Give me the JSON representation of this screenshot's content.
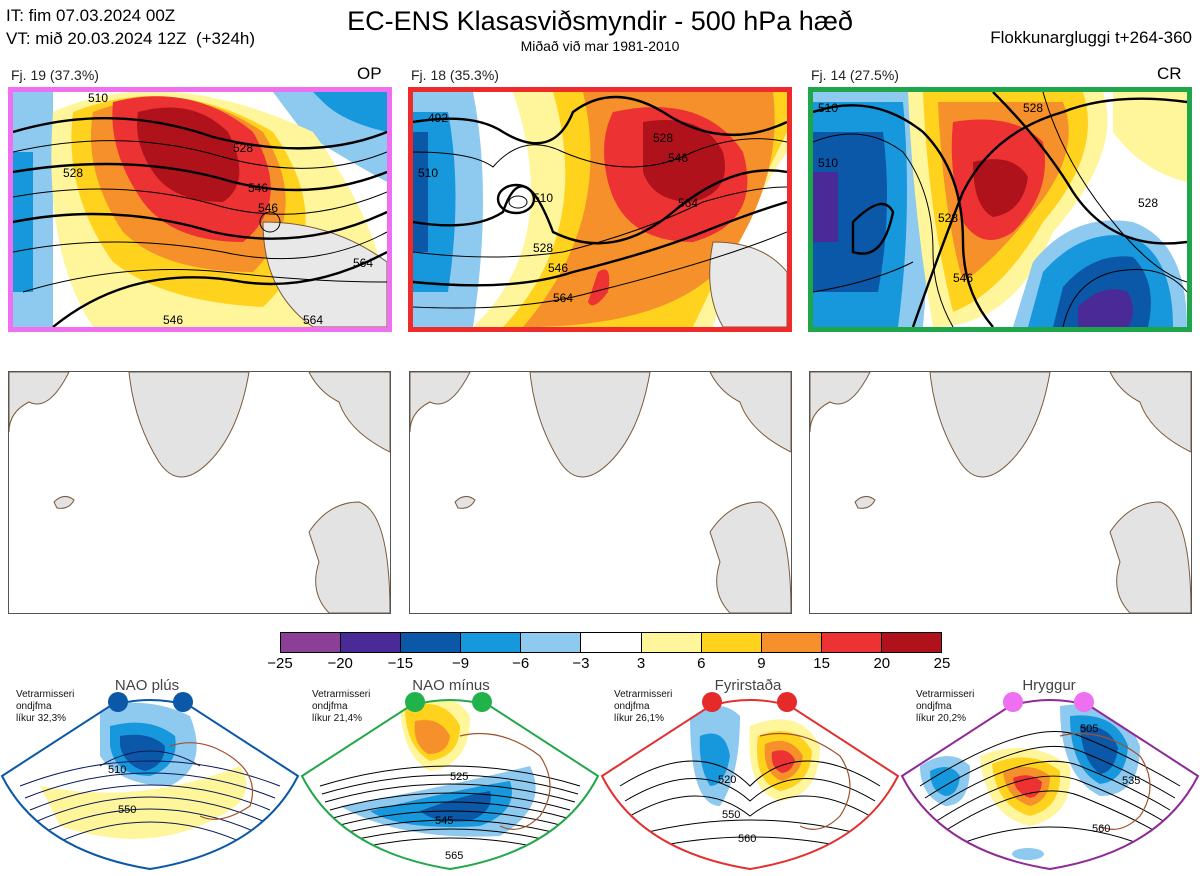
{
  "header": {
    "init_line": "IT: fim 07.03.2024 00Z",
    "valid_line": "VT: mið 20.03.2024 12Z  (+324h)",
    "title": "EC-ENS Klasasviðsmyndir - 500 hPa hæð",
    "subtitle": "Miðað við mar 1981-2010",
    "window": "Flokkunargluggi t+264-360"
  },
  "clusters": [
    {
      "label": "Fj. 19 (37.3%)",
      "tag": "OP",
      "border_color": "#ee6ff0",
      "contours": [
        "510",
        "528",
        "546",
        "546",
        "528",
        "546",
        "564",
        "564"
      ]
    },
    {
      "label": "Fj. 18 (35.3%)",
      "tag": "",
      "border_color": "#ee2a2a",
      "contours": [
        "492",
        "510",
        "510",
        "528",
        "528",
        "546",
        "546",
        "564",
        "564"
      ]
    },
    {
      "label": "Fj. 14 (27.5%)",
      "tag": "CR",
      "border_color": "#1fa64b",
      "contours": [
        "510",
        "510",
        "528",
        "528",
        "546",
        "528"
      ]
    }
  ],
  "colorbar": {
    "ticks": [
      "−25",
      "−20",
      "−15",
      "−9",
      "−6",
      "−3",
      "3",
      "6",
      "9",
      "15",
      "20",
      "25"
    ],
    "colors": [
      "#8c3f96",
      "#4a2a96",
      "#0b57a8",
      "#1898dc",
      "#8ec9ef",
      "#ffffff",
      "#fff59a",
      "#ffd21e",
      "#f6902a",
      "#ec3232",
      "#b0121b"
    ]
  },
  "regimes": [
    {
      "name": "NAO plús",
      "info": "Vetrarmisseri\nondjfma\nlíkur 32,3%",
      "border_color": "#0b57a8",
      "dot_color": "#0b57a8",
      "contours": [
        "510",
        "550"
      ]
    },
    {
      "name": "NAO mínus",
      "info": "Vetrarmisseri\nondjfma\nlíkur 21,4%",
      "border_color": "#22a84a",
      "dot_color": "#22b24c",
      "contours": [
        "525",
        "545",
        "565"
      ]
    },
    {
      "name": "Fyrirstaða",
      "info": "Vetrarmisseri\nondjfma\nlíkur 26,1%",
      "border_color": "#e23030",
      "dot_color": "#e62a2a",
      "contours": [
        "520",
        "550",
        "560"
      ]
    },
    {
      "name": "Hryggur",
      "info": "Vetrarmisseri\nondjfma\nlíkur 20,2%",
      "border_color": "#8e2a96",
      "dot_color": "#ee6ff0",
      "contours": [
        "505",
        "535",
        "560"
      ]
    }
  ]
}
